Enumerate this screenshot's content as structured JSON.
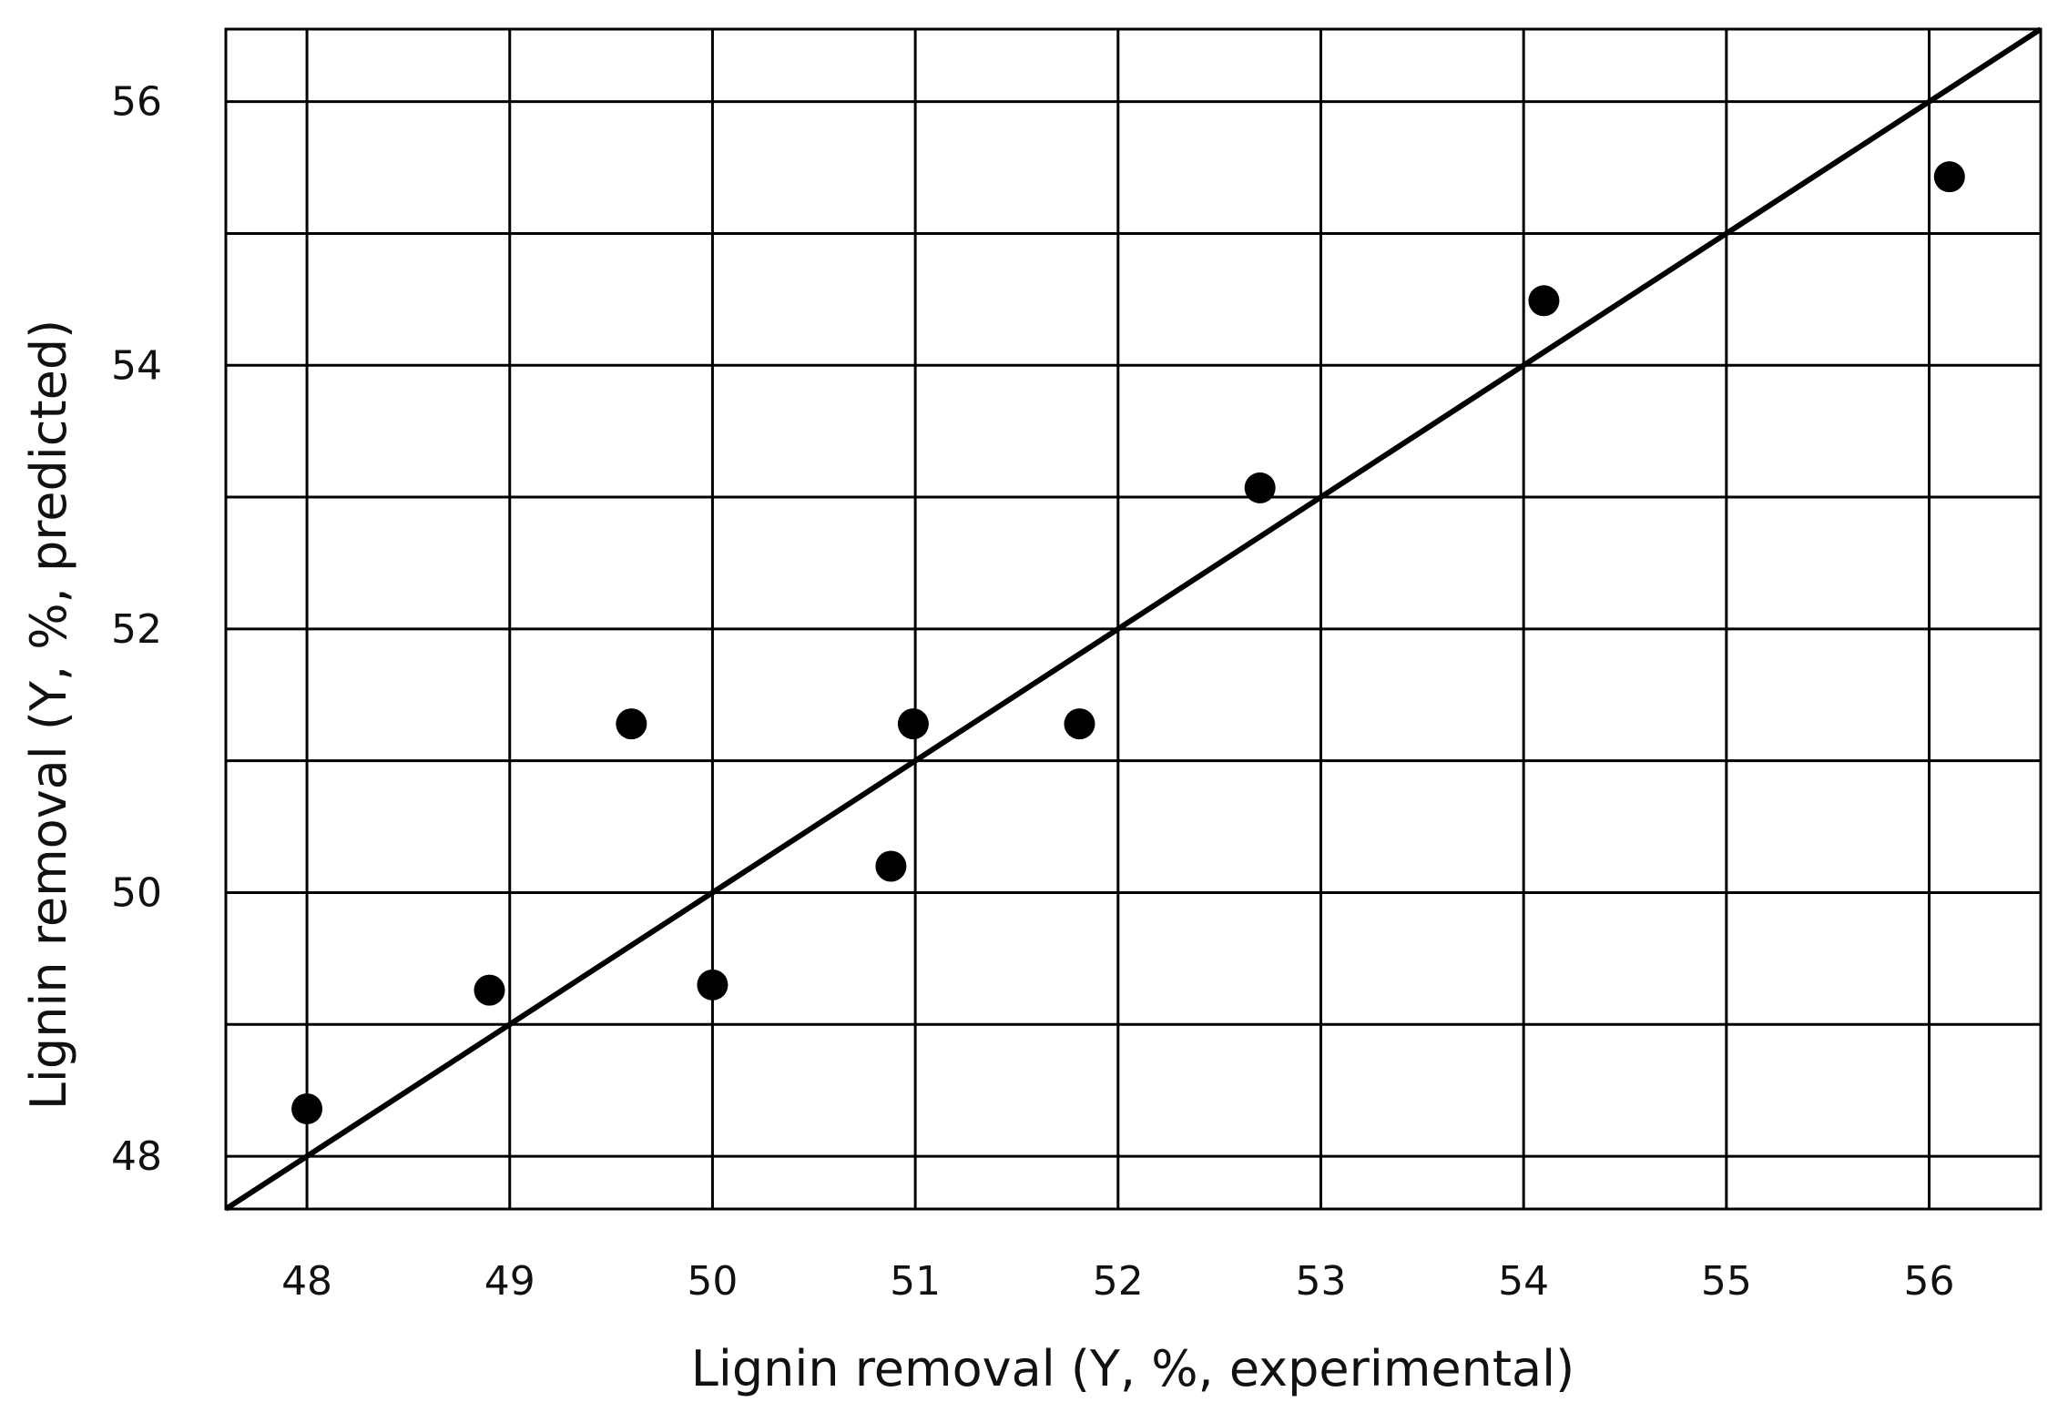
{
  "chart_data": {
    "type": "scatter",
    "xlabel": "Lignin removal (Y, %, experimental)",
    "ylabel": "Lignin removal (Y, %, predicted)",
    "xlim": [
      47.6,
      56.55
    ],
    "ylim": [
      47.6,
      56.55
    ],
    "xticks": [
      48,
      49,
      50,
      51,
      52,
      53,
      54,
      55,
      56
    ],
    "yticks": [
      48,
      50,
      52,
      54,
      56
    ],
    "ygrid": [
      48,
      49,
      50,
      51,
      52,
      53,
      54,
      55,
      56
    ],
    "grid": true,
    "series": [
      {
        "points": [
          {
            "x": 48.0,
            "y": 48.36
          },
          {
            "x": 48.9,
            "y": 49.26
          },
          {
            "x": 49.6,
            "y": 51.28
          },
          {
            "x": 50.0,
            "y": 49.3
          },
          {
            "x": 50.88,
            "y": 50.2
          },
          {
            "x": 50.99,
            "y": 51.28
          },
          {
            "x": 51.81,
            "y": 51.28
          },
          {
            "x": 52.7,
            "y": 53.07
          },
          {
            "x": 54.1,
            "y": 54.49
          },
          {
            "x": 56.1,
            "y": 55.43
          }
        ]
      }
    ],
    "reference_line": {
      "type": "y = x",
      "from": 47.6,
      "to": 56.55
    },
    "colors": {
      "points": "#000000",
      "line": "#000000",
      "grid": "#000000",
      "background": "#ffffff"
    }
  }
}
